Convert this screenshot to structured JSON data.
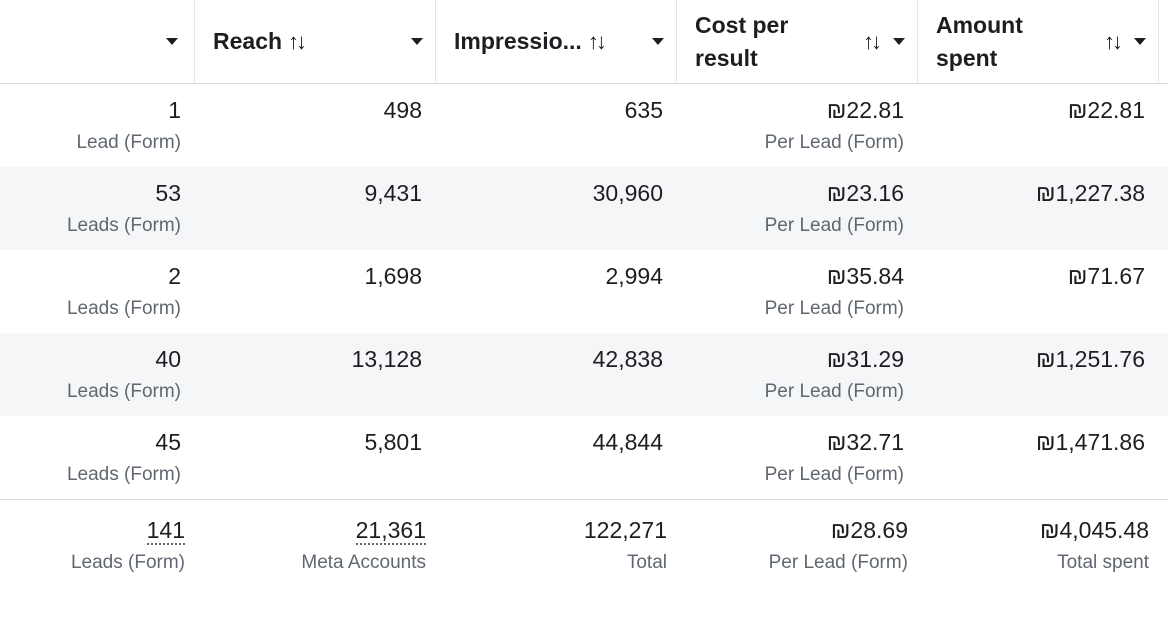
{
  "header": {
    "columns": [
      {
        "label": ""
      },
      {
        "label": "Reach"
      },
      {
        "label": "Impressio..."
      },
      {
        "label": "Cost per result"
      },
      {
        "label": "Amount spent"
      }
    ]
  },
  "rows": [
    {
      "results": "1",
      "results_sub": "Lead (Form)",
      "reach": "498",
      "impressions": "635",
      "cost": "₪22.81",
      "cost_sub": "Per Lead (Form)",
      "spent": "₪22.81"
    },
    {
      "results": "53",
      "results_sub": "Leads (Form)",
      "reach": "9,431",
      "impressions": "30,960",
      "cost": "₪23.16",
      "cost_sub": "Per Lead (Form)",
      "spent": "₪1,227.38"
    },
    {
      "results": "2",
      "results_sub": "Leads (Form)",
      "reach": "1,698",
      "impressions": "2,994",
      "cost": "₪35.84",
      "cost_sub": "Per Lead (Form)",
      "spent": "₪71.67"
    },
    {
      "results": "40",
      "results_sub": "Leads (Form)",
      "reach": "13,128",
      "impressions": "42,838",
      "cost": "₪31.29",
      "cost_sub": "Per Lead (Form)",
      "spent": "₪1,251.76"
    },
    {
      "results": "45",
      "results_sub": "Leads (Form)",
      "reach": "5,801",
      "impressions": "44,844",
      "cost": "₪32.71",
      "cost_sub": "Per Lead (Form)",
      "spent": "₪1,471.86"
    }
  ],
  "totals": {
    "results": "141",
    "results_sub": "Leads (Form)",
    "reach": "21,361",
    "reach_sub": "Meta Accounts",
    "impressions": "122,271",
    "impressions_sub": "Total",
    "cost": "₪28.69",
    "cost_sub": "Per Lead (Form)",
    "spent": "₪4,045.48",
    "spent_sub": "Total spent"
  },
  "icons": {
    "sort": "sort-arrows-icon",
    "dropdown": "caret-down-icon"
  }
}
